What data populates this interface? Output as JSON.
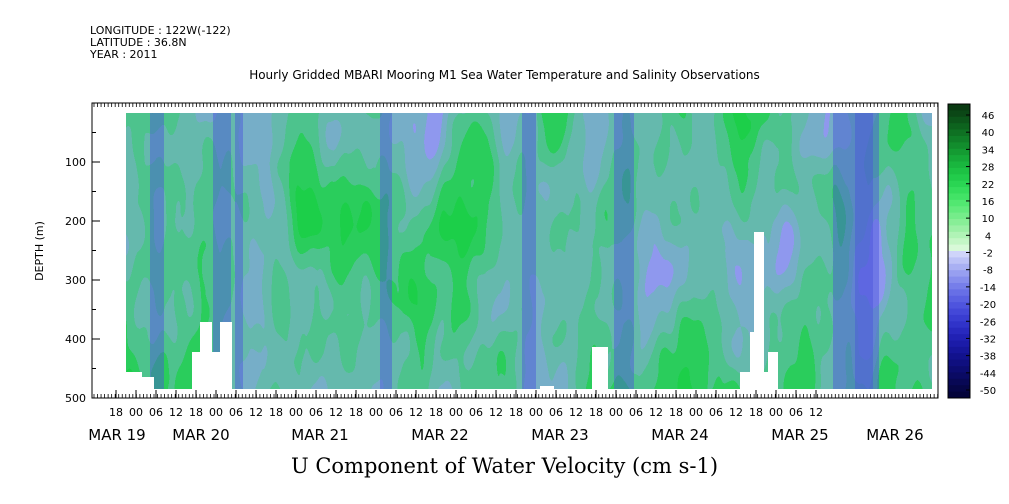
{
  "meta": {
    "longitude": "LONGITUDE : 122W(-122)",
    "latitude": "LATITUDE : 36.8N",
    "year": "YEAR : 2011"
  },
  "chart_data": {
    "type": "heatmap",
    "title": "Hourly Gridded MBARI Mooring M1 Sea Water Temperature and Salinity Observations",
    "xlabel": "U Component of Water Velocity (cm s-1)",
    "ylabel": "DEPTH (m)",
    "ylim": [
      500,
      0
    ],
    "y_ticks": [
      100,
      200,
      300,
      400,
      500
    ],
    "x_hour_ticks": [
      "18",
      "00",
      "06",
      "12",
      "18",
      "00",
      "06",
      "12",
      "18",
      "00",
      "06",
      "12",
      "18",
      "00",
      "06",
      "12",
      "18",
      "00",
      "06",
      "12",
      "18",
      "00",
      "06",
      "12",
      "18",
      "00",
      "06",
      "12",
      "18",
      "00",
      "06",
      "12",
      "18",
      "00",
      "06",
      "12"
    ],
    "x_day_labels": [
      "MAR 19",
      "MAR 20",
      "MAR 21",
      "MAR 22",
      "MAR 23",
      "MAR 24",
      "MAR 25",
      "MAR 26"
    ],
    "colorbar": {
      "levels": [
        48,
        46,
        44,
        42,
        40,
        38,
        36,
        34,
        32,
        30,
        28,
        26,
        24,
        22,
        20,
        18,
        16,
        14,
        12,
        10,
        8,
        6,
        4,
        2,
        -2,
        -4,
        -6,
        -8,
        -10,
        -12,
        -14,
        -16,
        -18,
        -20,
        -22,
        -24,
        -26,
        -28,
        -30,
        -32,
        -34,
        -36,
        -38,
        -40,
        -42,
        -44,
        -46,
        -48,
        -50
      ],
      "labels": [
        "46",
        "40",
        "34",
        "28",
        "22",
        "16",
        "10",
        "4",
        "-2",
        "-8",
        "-14",
        "-20",
        "-26",
        "-32",
        "-38",
        "-44",
        "-50"
      ],
      "colors": [
        "#0a3a12",
        "#0b4716",
        "#0c551a",
        "#0d631e",
        "#0f7123",
        "#107f28",
        "#128d2d",
        "#149b32",
        "#16a938",
        "#19b63e",
        "#1dc244",
        "#22cc4b",
        "#2ad553",
        "#35dd5c",
        "#42e366",
        "#52e771",
        "#63ea7d",
        "#75ec8a",
        "#88ee97",
        "#9cf0a6",
        "#b0f3b6",
        "#c4f6c6",
        "#d8f9d8",
        "#cfd4fa",
        "#bcc2f7",
        "#a9b0f3",
        "#979ff0",
        "#868eed",
        "#767eea",
        "#676fe6",
        "#5a61e2",
        "#4e54de",
        "#4348d8",
        "#393dd1",
        "#3033c9",
        "#2829bf",
        "#2121b4",
        "#1b1ba8",
        "#16169b",
        "#12128d",
        "#0f0f7f",
        "#0c0c71",
        "#0a0a63",
        "#080855",
        "#060647",
        "#04043a"
      ]
    }
  }
}
